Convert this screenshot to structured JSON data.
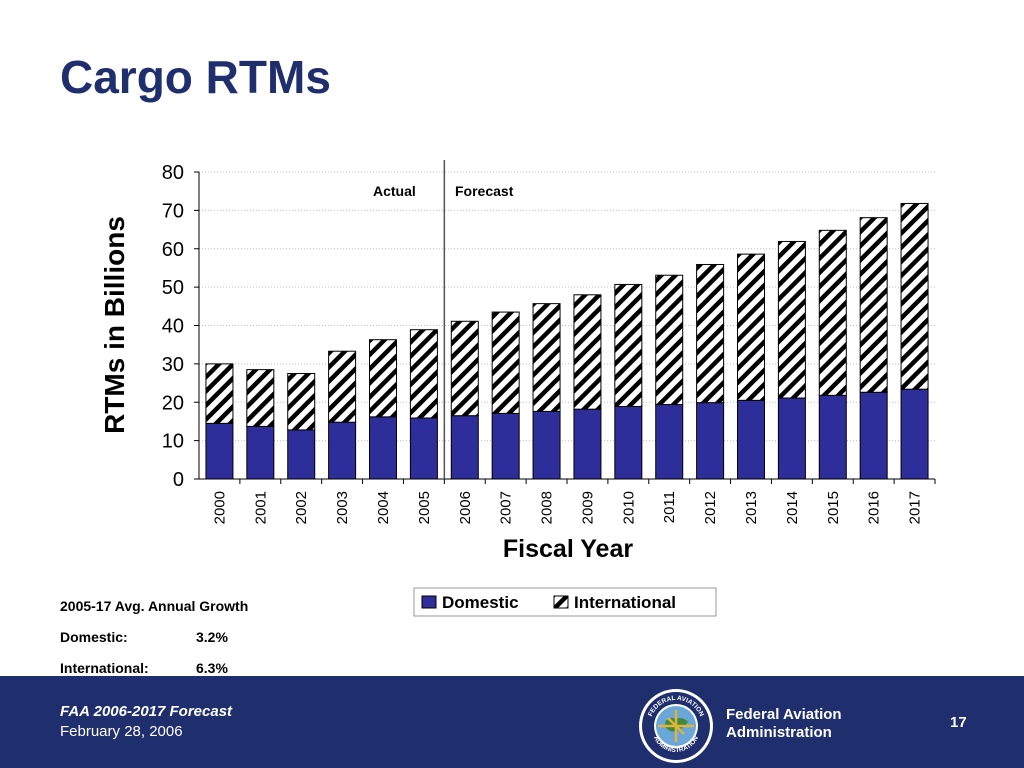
{
  "slide": {
    "title": "Cargo RTMs",
    "page_number": "17"
  },
  "growth": {
    "heading": "2005-17 Avg. Annual Growth",
    "domestic_label": "Domestic:",
    "domestic_value": "3.2%",
    "international_label": "International:",
    "international_value": "6.3%"
  },
  "footer": {
    "title": "FAA 2006-2017 Forecast",
    "date": "February 28, 2006",
    "agency_line1": "Federal Aviation",
    "agency_line2": "Administration",
    "seal_text_top": "FEDERAL AVIATION",
    "seal_text_bottom": "ADMINISTRATION"
  },
  "colors": {
    "brand_navy": "#1f2f6e",
    "domestic_fill": "#2e2e9a",
    "international_fill": "hatched black/white"
  },
  "chart_data": {
    "type": "bar",
    "stacked": true,
    "categories": [
      "2000",
      "2001",
      "2002",
      "2003",
      "2004",
      "2005",
      "2006",
      "2007",
      "2008",
      "2009",
      "2010",
      "2011",
      "2012",
      "2013",
      "2014",
      "2015",
      "2016",
      "2017"
    ],
    "series": [
      {
        "name": "Domestic",
        "values": [
          14.5,
          13.7,
          12.8,
          14.8,
          16.2,
          15.9,
          16.5,
          17.1,
          17.6,
          18.2,
          18.9,
          19.4,
          19.9,
          20.5,
          21.1,
          21.8,
          22.6,
          23.4
        ]
      },
      {
        "name": "International",
        "values": [
          15.5,
          14.8,
          14.7,
          18.5,
          20.1,
          23.0,
          24.6,
          26.4,
          28.1,
          29.8,
          31.8,
          33.7,
          36.0,
          38.1,
          40.8,
          43.0,
          45.5,
          48.4
        ]
      }
    ],
    "xlabel": "Fiscal Year",
    "ylabel": "RTMs in Billions",
    "ylim": [
      0,
      80
    ],
    "yticks": [
      "0",
      "10",
      "20",
      "30",
      "40",
      "50",
      "60",
      "70",
      "80"
    ],
    "grid": true,
    "legend_position": "bottom",
    "annotations": {
      "actual": "Actual",
      "forecast": "Forecast",
      "divider_after": "2005"
    }
  }
}
